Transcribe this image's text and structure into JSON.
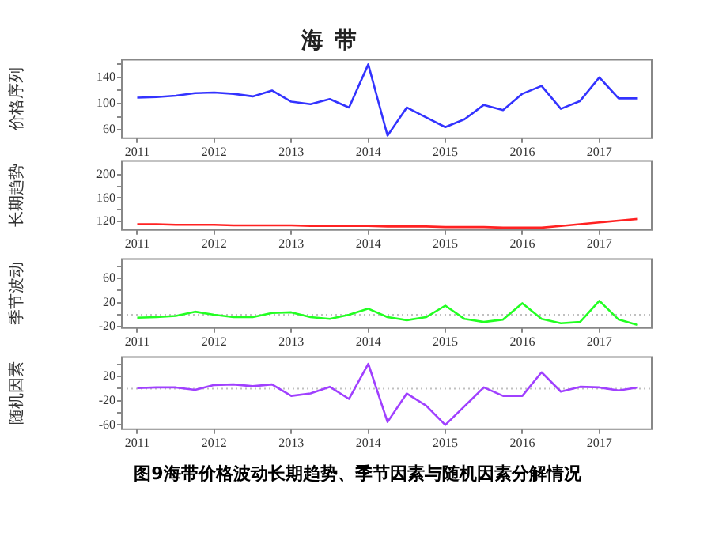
{
  "chart_data": [
    {
      "type": "line",
      "title": "海  带",
      "ylabel": "价格序列",
      "x": [
        2011,
        2011.25,
        2011.5,
        2011.75,
        2012,
        2012.25,
        2012.5,
        2012.75,
        2013,
        2013.25,
        2013.5,
        2013.75,
        2014,
        2014.25,
        2014.5,
        2014.75,
        2015,
        2015.25,
        2015.5,
        2015.75,
        2016,
        2016.25,
        2016.5,
        2016.75,
        2017,
        2017.25,
        2017.5
      ],
      "xlim": [
        2010.8,
        2017.68
      ],
      "xticks": [
        2011,
        2012,
        2013,
        2014,
        2015,
        2016,
        2017
      ],
      "ylim": [
        47,
        167
      ],
      "yticks": [
        {
          "value": 60,
          "label": "60"
        },
        {
          "value": 80,
          "label": null
        },
        {
          "value": 100,
          "label": "100"
        },
        {
          "value": 120,
          "label": null
        },
        {
          "value": 140,
          "label": "140"
        },
        {
          "value": 160,
          "label": null
        }
      ],
      "grid": false,
      "legend": false,
      "series": [
        {
          "color": "#3333ff",
          "values": [
            109,
            110,
            112,
            116,
            117,
            115,
            111,
            120,
            103,
            99,
            107,
            94,
            160,
            51,
            94,
            79,
            64,
            76,
            98,
            90,
            115,
            127,
            92,
            104,
            140,
            108,
            108
          ]
        }
      ]
    },
    {
      "type": "line",
      "ylabel": "长期趋势",
      "x": [
        2011,
        2011.25,
        2011.5,
        2011.75,
        2012,
        2012.25,
        2012.5,
        2012.75,
        2013,
        2013.25,
        2013.5,
        2013.75,
        2014,
        2014.25,
        2014.5,
        2014.75,
        2015,
        2015.25,
        2015.5,
        2015.75,
        2016,
        2016.25,
        2016.5,
        2016.75,
        2017,
        2017.25,
        2017.5
      ],
      "xlim": [
        2010.8,
        2017.68
      ],
      "xticks": [
        2011,
        2012,
        2013,
        2014,
        2015,
        2016,
        2017
      ],
      "ylim": [
        105,
        224
      ],
      "yticks": [
        {
          "value": 120,
          "label": "120"
        },
        {
          "value": 140,
          "label": null
        },
        {
          "value": 160,
          "label": "160"
        },
        {
          "value": 180,
          "label": null
        },
        {
          "value": 200,
          "label": "200"
        }
      ],
      "grid": false,
      "legend": false,
      "series": [
        {
          "color": "#ff2222",
          "values": [
            115,
            115,
            114,
            114,
            114,
            113,
            113,
            113,
            113,
            112,
            112,
            112,
            112,
            111,
            111,
            111,
            110,
            110,
            110,
            109,
            109,
            109,
            112,
            115,
            118,
            121,
            124
          ]
        }
      ]
    },
    {
      "type": "line",
      "ylabel": "季节波动",
      "x": [
        2011,
        2011.25,
        2011.5,
        2011.75,
        2012,
        2012.25,
        2012.5,
        2012.75,
        2013,
        2013.25,
        2013.5,
        2013.75,
        2014,
        2014.25,
        2014.5,
        2014.75,
        2015,
        2015.25,
        2015.5,
        2015.75,
        2016,
        2016.25,
        2016.5,
        2016.75,
        2017,
        2017.25,
        2017.5
      ],
      "xlim": [
        2010.8,
        2017.68
      ],
      "xticks": [
        2011,
        2012,
        2013,
        2014,
        2015,
        2016,
        2017
      ],
      "ylim": [
        -22,
        92
      ],
      "yticks": [
        {
          "value": -20,
          "label": "-20"
        },
        {
          "value": 0,
          "label": null
        },
        {
          "value": 20,
          "label": "20"
        },
        {
          "value": 40,
          "label": null
        },
        {
          "value": 60,
          "label": "60"
        },
        {
          "value": 80,
          "label": null
        }
      ],
      "grid": false,
      "legend": false,
      "ref_lines": [
        {
          "axis": "y",
          "value": 0,
          "color": "#c0c0c0",
          "line_style": "dotted"
        }
      ],
      "series": [
        {
          "color": "#22ff22",
          "values": [
            -5,
            -4,
            -2,
            5,
            0,
            -4,
            -4,
            3,
            4,
            -4,
            -7,
            0,
            10,
            -4,
            -9,
            -4,
            15,
            -7,
            -12,
            -8,
            19,
            -7,
            -14,
            -12,
            23,
            -8,
            -17
          ]
        }
      ]
    },
    {
      "type": "line",
      "ylabel": "随机因素",
      "x": [
        2011,
        2011.25,
        2011.5,
        2011.75,
        2012,
        2012.25,
        2012.5,
        2012.75,
        2013,
        2013.25,
        2013.5,
        2013.75,
        2014,
        2014.25,
        2014.5,
        2014.75,
        2015,
        2015.25,
        2015.5,
        2015.75,
        2016,
        2016.25,
        2016.5,
        2016.75,
        2017,
        2017.25,
        2017.5
      ],
      "xlim": [
        2010.8,
        2017.68
      ],
      "xticks": [
        2011,
        2012,
        2013,
        2014,
        2015,
        2016,
        2017
      ],
      "ylim": [
        -67,
        52
      ],
      "yticks": [
        {
          "value": -60,
          "label": "-60"
        },
        {
          "value": -40,
          "label": null
        },
        {
          "value": -20,
          "label": "-20"
        },
        {
          "value": 0,
          "label": null
        },
        {
          "value": 20,
          "label": "20"
        },
        {
          "value": 40,
          "label": null
        }
      ],
      "grid": false,
      "legend": false,
      "ref_lines": [
        {
          "axis": "y",
          "value": 0,
          "color": "#c0c0c0",
          "line_style": "dotted"
        }
      ],
      "series": [
        {
          "color": "#a040ff",
          "values": [
            1,
            2,
            2,
            -2,
            6,
            7,
            4,
            7,
            -12,
            -8,
            3,
            -17,
            41,
            -55,
            -8,
            -28,
            -60,
            -29,
            2,
            -12,
            -12,
            27,
            -5,
            3,
            2,
            -3,
            2
          ]
        }
      ],
      "annotations": [
        "图9海带价格波动长期趋势、季节因素与随机因素分解情况"
      ]
    }
  ]
}
